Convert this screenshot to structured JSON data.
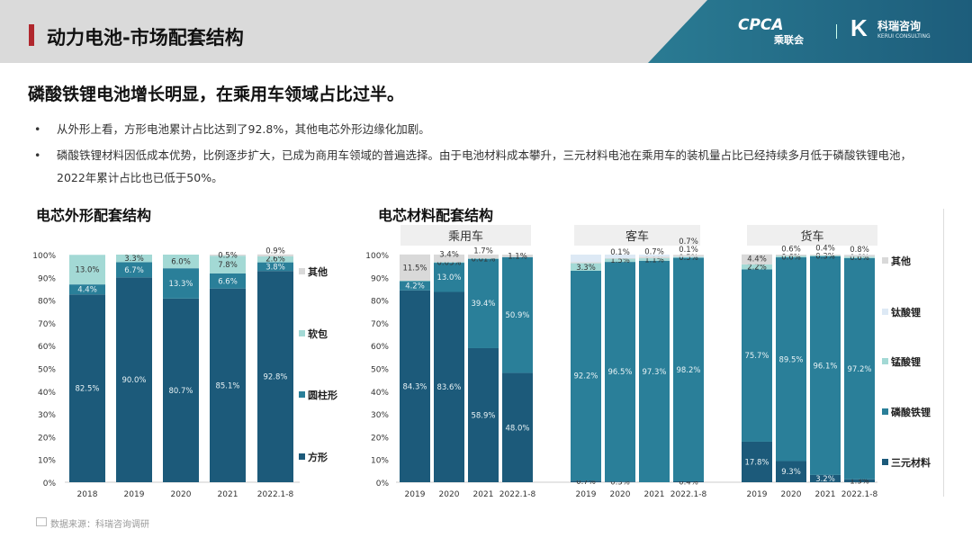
{
  "header": {
    "title": "动力电池-市场配套结构",
    "logo_cpca": "CPCA",
    "logo_cpca_cn": "乘联会",
    "logo_kerui": "科瑞咨询",
    "logo_kerui_en": "KERUI CONSULTING"
  },
  "headline": "磷酸铁锂电池增长明显，在乘用车领域占比过半。",
  "bullets": [
    "从外形上看，方形电池累计占比达到了92.8%，其他电芯外形边缘化加剧。",
    "磷酸铁锂材料因低成本优势，比例逐步扩大，已成为商用车领域的普遍选择。由于电池材料成本攀升，三元材料电池在乘用车的装机量占比已经持续多月低于磷酸铁锂电池，2022年累计占比也已低于50%。"
  ],
  "bullet_symbol": "•",
  "footer": "数据来源：科瑞咨询调研",
  "colors": {
    "dark": "#1c5a7a",
    "mid": "#2a7f99",
    "mint": "#a3d9d5",
    "grey": "#d9d9d9",
    "pale": "#dde9f5"
  },
  "chart_data": [
    {
      "type": "bar",
      "stacked": true,
      "title": "电芯外形配套结构",
      "categories": [
        "2018",
        "2019",
        "2020",
        "2021",
        "2022.1-8"
      ],
      "yticks": [
        "0%",
        "10%",
        "20%",
        "30%",
        "40%",
        "50%",
        "60%",
        "70%",
        "80%",
        "90%",
        "100%"
      ],
      "ylim": [
        0,
        100
      ],
      "legend": "right",
      "series": [
        {
          "name": "方形",
          "color": "#1c5a7a",
          "values": [
            82.5,
            90.0,
            80.7,
            85.1,
            92.8
          ]
        },
        {
          "name": "圆柱形",
          "color": "#2a7f99",
          "values": [
            4.4,
            6.7,
            13.3,
            6.6,
            3.8
          ]
        },
        {
          "name": "软包",
          "color": "#a3d9d5",
          "values": [
            13.0,
            3.3,
            6.0,
            7.8,
            2.6
          ]
        },
        {
          "name": "其他",
          "color": "#d9d9d9",
          "values": [
            null,
            null,
            null,
            0.5,
            0.9
          ]
        }
      ]
    },
    {
      "type": "bar",
      "stacked": true,
      "title": "电芯材料配套结构",
      "groups": [
        "乘用车",
        "客车",
        "货车"
      ],
      "categories": [
        "2019",
        "2020",
        "2021",
        "2022.1-8"
      ],
      "yticks": [
        "0%",
        "10%",
        "20%",
        "30%",
        "40%",
        "50%",
        "60%",
        "70%",
        "80%",
        "90%",
        "100%"
      ],
      "ylim": [
        0,
        100
      ],
      "legend": "right",
      "series": [
        {
          "name": "三元材料",
          "color": "#1c5a7a",
          "values": [
            [
              84.3,
              83.6,
              58.9,
              48.0
            ],
            [
              0.7,
              0.3,
              null,
              0.4
            ],
            [
              17.8,
              9.3,
              3.2,
              1.3
            ]
          ]
        },
        {
          "name": "磷酸铁锂",
          "color": "#2a7f99",
          "values": [
            [
              4.2,
              13.0,
              39.4,
              50.9
            ],
            [
              92.2,
              96.5,
              97.3,
              98.2
            ],
            [
              75.7,
              89.5,
              96.1,
              97.2
            ]
          ]
        },
        {
          "name": "锰酸锂",
          "color": "#a3d9d5",
          "values": [
            [
              0.05,
              0.03,
              0.01,
              null
            ],
            [
              3.3,
              1.5,
              1.1,
              0.5
            ],
            [
              2.2,
              0.6,
              0.3,
              0.6
            ]
          ]
        },
        {
          "name": "钛酸锂",
          "color": "#dde9f5",
          "values": [
            [
              null,
              null,
              null,
              null
            ],
            [
              null,
              null,
              null,
              0.1
            ],
            [
              null,
              null,
              null,
              null
            ]
          ]
        },
        {
          "name": "其他",
          "color": "#d9d9d9",
          "values": [
            [
              11.5,
              3.4,
              1.7,
              1.1
            ],
            [
              0.5,
              0.1,
              0.7,
              0.7
            ],
            [
              4.4,
              0.6,
              0.4,
              0.8
            ]
          ]
        }
      ]
    }
  ]
}
